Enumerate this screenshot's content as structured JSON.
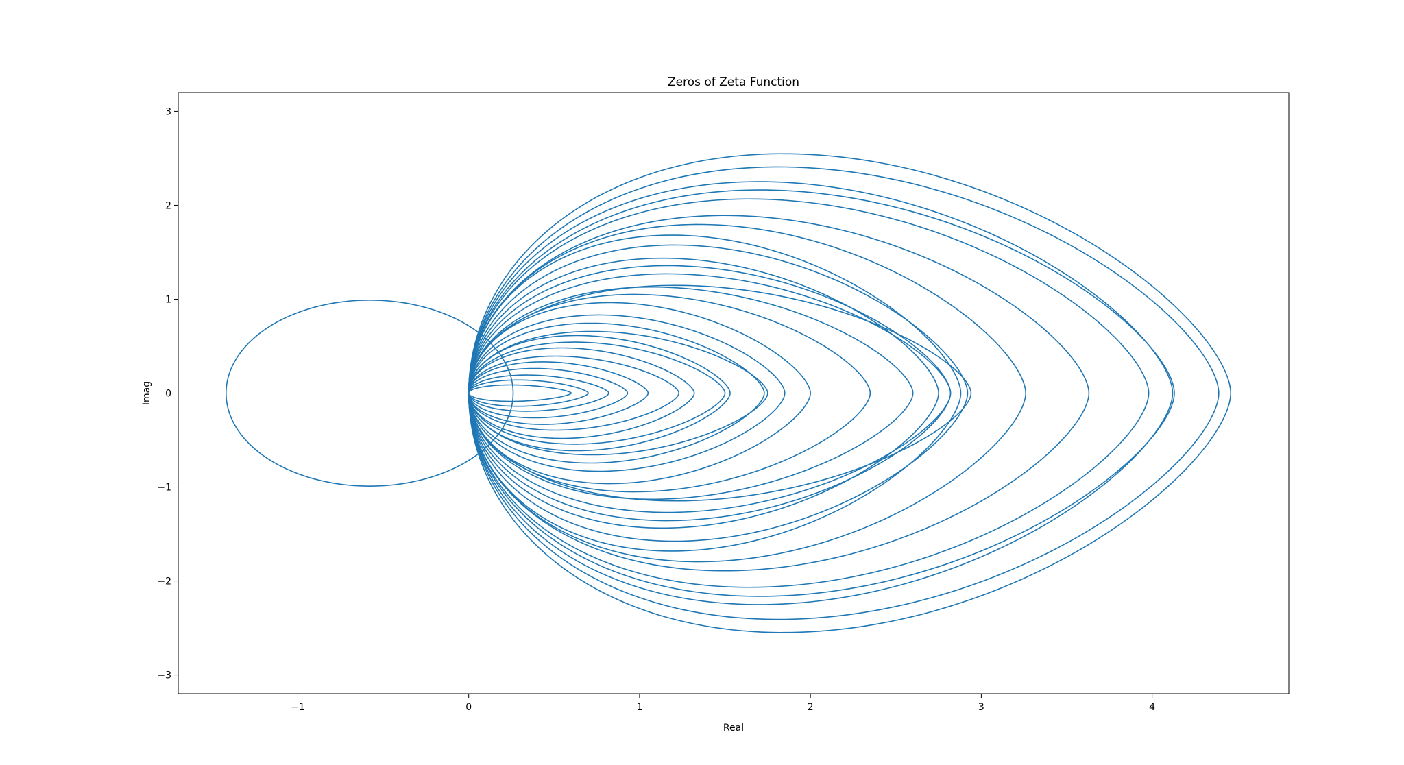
{
  "chart_data": {
    "type": "line",
    "title": "Zeros of Zeta Function",
    "xlabel": "Real",
    "ylabel": "Imag",
    "xlim": [
      -1.7,
      4.8
    ],
    "ylim": [
      -3.2,
      3.2
    ],
    "grid": false,
    "legend": "none",
    "line_color": "#1f77b4",
    "x_ticks": [
      {
        "value": -1,
        "label": "−1"
      },
      {
        "value": 0,
        "label": "0"
      },
      {
        "value": 1,
        "label": "1"
      },
      {
        "value": 2,
        "label": "2"
      },
      {
        "value": 3,
        "label": "3"
      },
      {
        "value": 4,
        "label": "4"
      }
    ],
    "y_ticks": [
      {
        "value": -3,
        "label": "−3"
      },
      {
        "value": -2,
        "label": "−2"
      },
      {
        "value": -1,
        "label": "−1"
      },
      {
        "value": 0,
        "label": "0"
      },
      {
        "value": 1,
        "label": "1"
      },
      {
        "value": 2,
        "label": "2"
      },
      {
        "value": 3,
        "label": "3"
      }
    ],
    "series": [
      {
        "values_description": "circle",
        "cx": -0.58,
        "rx": 0.84,
        "ry": 0.99
      },
      {
        "cx": 1.66,
        "rx": 2.8,
        "ry": 2.91
      },
      {
        "cx": 1.62,
        "rx": 2.77,
        "ry": 2.75
      },
      {
        "cx": 1.65,
        "rx": 2.47,
        "ry": 2.57
      },
      {
        "cx": 1.55,
        "rx": 2.58,
        "ry": 2.47
      },
      {
        "cx": 1.5,
        "rx": 2.48,
        "ry": 2.36
      },
      {
        "cx": 1.25,
        "rx": 2.38,
        "ry": 2.16
      },
      {
        "cx": 1.05,
        "rx": 2.21,
        "ry": 2.05
      },
      {
        "cx": 1.2,
        "rx": 1.68,
        "ry": 1.92
      },
      {
        "cx": 1.1,
        "rx": 1.82,
        "ry": 1.8
      },
      {
        "cx": 1.05,
        "rx": 1.7,
        "ry": 1.64
      },
      {
        "cx": 1.2,
        "rx": 1.62,
        "ry": 1.55
      },
      {
        "cx": 1.12,
        "rx": 1.7,
        "ry": 1.45
      },
      {
        "cx": 1.3,
        "rx": 1.64,
        "ry": 1.31
      },
      {
        "cx": 1.0,
        "rx": 1.6,
        "ry": 1.29
      },
      {
        "cx": 0.9,
        "rx": 1.45,
        "ry": 1.2
      },
      {
        "cx": 0.85,
        "rx": 1.15,
        "ry": 1.1
      },
      {
        "cx": 0.9,
        "rx": 0.95,
        "ry": 0.95
      },
      {
        "cx": 0.85,
        "rx": 0.88,
        "ry": 0.85
      },
      {
        "cx": 0.8,
        "rx": 0.95,
        "ry": 0.75
      },
      {
        "cx": 0.75,
        "rx": 0.78,
        "ry": 0.7
      },
      {
        "cx": 0.7,
        "rx": 0.8,
        "ry": 0.62
      },
      {
        "cx": 0.6,
        "rx": 0.72,
        "ry": 0.55
      },
      {
        "cx": 0.55,
        "rx": 0.68,
        "ry": 0.45
      },
      {
        "cx": 0.5,
        "rx": 0.55,
        "ry": 0.38
      },
      {
        "cx": 0.45,
        "rx": 0.48,
        "ry": 0.3
      },
      {
        "cx": 0.4,
        "rx": 0.42,
        "ry": 0.22
      },
      {
        "cx": 0.35,
        "rx": 0.35,
        "ry": 0.16
      },
      {
        "cx": 0.3,
        "rx": 0.3,
        "ry": 0.1
      }
    ]
  }
}
